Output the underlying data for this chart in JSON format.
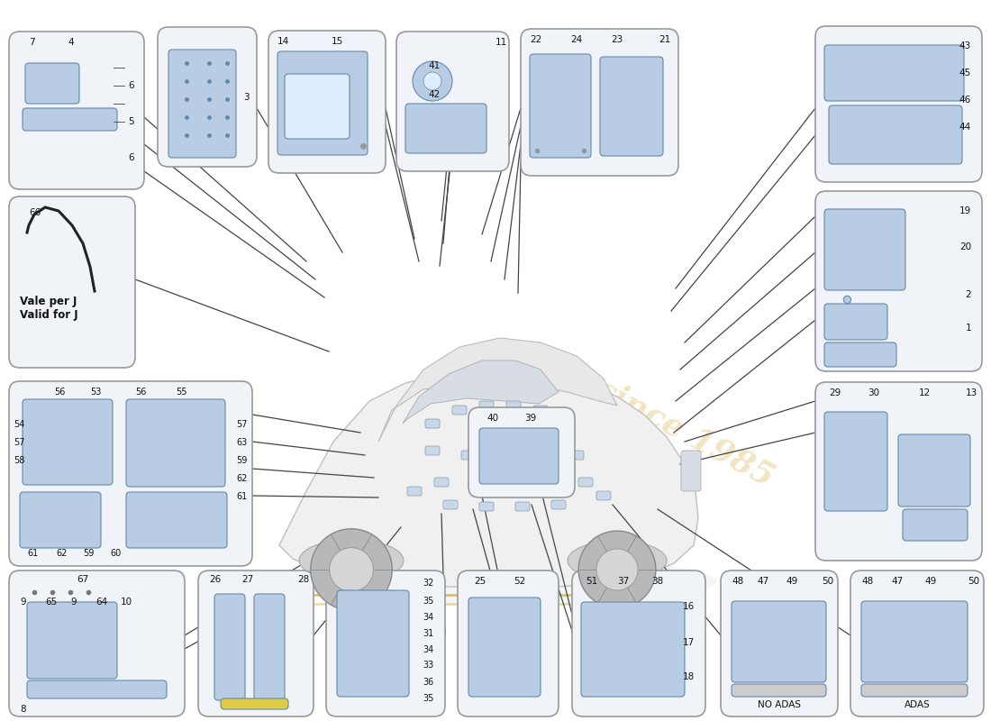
{
  "bg_color": "#ffffff",
  "box_bg": "#f0f4f8",
  "box_border": "#999999",
  "part_color": "#b8cce4",
  "part_edge": "#6688aa",
  "line_color": "#555555",
  "label_color": "#111111",
  "figsize": [
    11.0,
    8.0
  ],
  "dpi": 100,
  "watermark": "since 1985",
  "note_text": "Vale per J\nValid for J"
}
